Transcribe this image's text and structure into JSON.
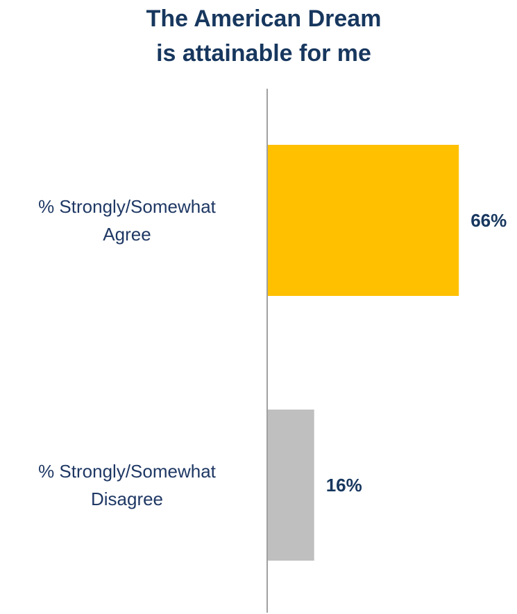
{
  "chart_data": {
    "type": "bar",
    "orientation": "horizontal",
    "title": "The American Dream is attainable for me",
    "title_lines": [
      "The American Dream",
      "is attainable for me"
    ],
    "categories": [
      {
        "label_lines": [
          "% Strongly/Somewhat",
          "Agree"
        ],
        "value": 66,
        "value_label": "66%",
        "color": "#FFC000"
      },
      {
        "label_lines": [
          "% Strongly/Somewhat",
          "Disagree"
        ],
        "value": 16,
        "value_label": "16%",
        "color": "#BFBFBF"
      }
    ],
    "xlim": [
      0,
      100
    ],
    "grid": false,
    "legend": "none"
  }
}
